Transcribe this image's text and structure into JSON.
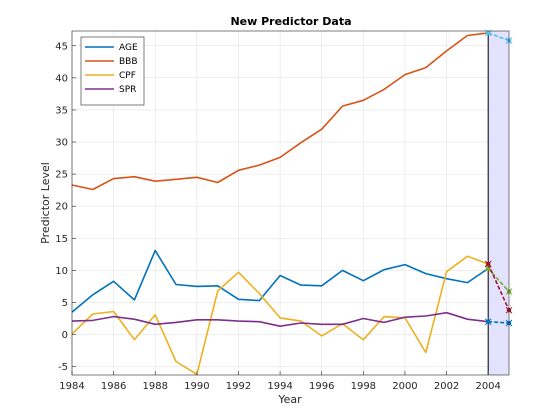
{
  "chart_data": {
    "type": "line",
    "title": "New Predictor Data",
    "xlabel": "Year",
    "ylabel": "Predictor Level",
    "xlim": [
      1984,
      2005
    ],
    "ylim": [
      -6.3,
      47.3
    ],
    "xticks": [
      1984,
      1986,
      1988,
      1990,
      1992,
      1994,
      1996,
      1998,
      2000,
      2002,
      2004
    ],
    "yticks": [
      -5,
      0,
      5,
      10,
      15,
      20,
      25,
      30,
      35,
      40,
      45
    ],
    "grid": true,
    "legend_position": "top-left",
    "x": [
      1984,
      1985,
      1986,
      1987,
      1988,
      1989,
      1990,
      1991,
      1992,
      1993,
      1994,
      1995,
      1996,
      1997,
      1998,
      1999,
      2000,
      2001,
      2002,
      2003,
      2004
    ],
    "series": [
      {
        "name": "AGE",
        "color": "#0072BD",
        "values": [
          3.5,
          6.2,
          8.3,
          5.4,
          13.1,
          7.8,
          7.5,
          7.6,
          5.5,
          5.3,
          9.2,
          7.7,
          7.6,
          10.0,
          8.4,
          10.1,
          10.9,
          9.5,
          8.7,
          8.1,
          10.3
        ]
      },
      {
        "name": "BBB",
        "color": "#D95319",
        "values": [
          23.3,
          22.6,
          24.3,
          24.6,
          23.9,
          24.2,
          24.5,
          23.7,
          25.6,
          26.4,
          27.6,
          29.9,
          32.0,
          35.6,
          36.5,
          38.2,
          40.5,
          41.6,
          44.2,
          46.6,
          47.0
        ]
      },
      {
        "name": "CPF",
        "color": "#EDB120",
        "values": [
          0.1,
          3.2,
          3.6,
          -0.8,
          3.1,
          -4.2,
          -6.2,
          6.8,
          9.7,
          6.4,
          2.6,
          2.1,
          -0.2,
          1.7,
          -0.8,
          2.8,
          2.6,
          -2.8,
          9.8,
          12.2,
          11.0
        ]
      },
      {
        "name": "SPR",
        "color": "#7E2F8E",
        "values": [
          2.1,
          2.2,
          2.8,
          2.4,
          1.6,
          1.9,
          2.3,
          2.3,
          2.1,
          2.0,
          1.3,
          1.8,
          1.6,
          1.6,
          2.5,
          1.9,
          2.7,
          2.9,
          3.4,
          2.4,
          2.0
        ]
      }
    ],
    "forecast": {
      "x_range": [
        2004,
        2005
      ],
      "region_color": "#e0e0ff",
      "lines": [
        {
          "color": "#4DBEEE",
          "x": [
            2004,
            2005
          ],
          "y": [
            47.0,
            45.8
          ]
        },
        {
          "color": "#77AC30",
          "x": [
            2004,
            2005
          ],
          "y": [
            10.3,
            6.7
          ]
        },
        {
          "color": "#A2142F",
          "x": [
            2004,
            2005
          ],
          "y": [
            11.0,
            3.8
          ]
        },
        {
          "color": "#0072BD",
          "x": [
            2004,
            2005
          ],
          "y": [
            2.0,
            1.8
          ]
        }
      ]
    }
  }
}
